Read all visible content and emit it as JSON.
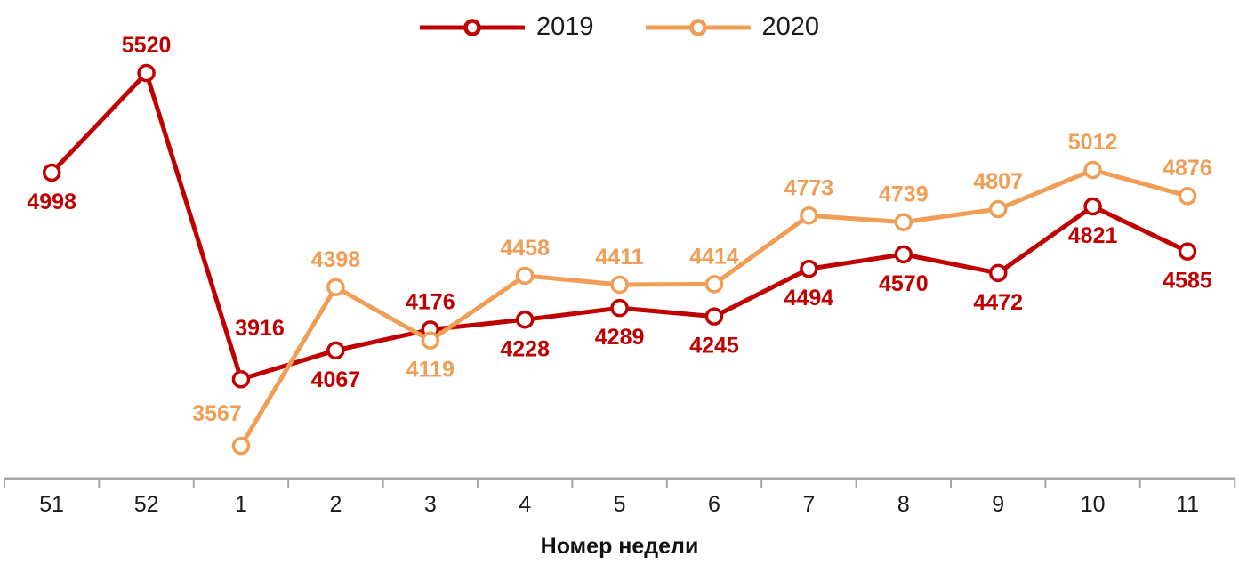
{
  "chart_data": {
    "type": "line",
    "title": "",
    "xlabel": "Номер недели",
    "ylabel": "",
    "categories": [
      "51",
      "52",
      "1",
      "2",
      "3",
      "4",
      "5",
      "6",
      "7",
      "8",
      "9",
      "10",
      "11"
    ],
    "series": [
      {
        "name": "2019",
        "color": "#C00000",
        "values": [
          4998,
          5520,
          3916,
          4067,
          4176,
          4228,
          4289,
          4245,
          4494,
          4570,
          4472,
          4821,
          4585
        ],
        "label_positions": [
          "below",
          "above",
          "above-right",
          "below",
          "above",
          "below",
          "below",
          "below",
          "below",
          "below",
          "below",
          "below",
          "below"
        ]
      },
      {
        "name": "2020",
        "color": "#F09D55",
        "values": [
          null,
          null,
          3567,
          4398,
          4119,
          4458,
          4411,
          4414,
          4773,
          4739,
          4807,
          5012,
          4876
        ],
        "label_positions": [
          null,
          null,
          "above-left",
          "above",
          "below",
          "above",
          "above",
          "above",
          "above",
          "above",
          "above",
          "above",
          "above"
        ]
      }
    ],
    "marker": "open-circle",
    "grid": false,
    "y_axis_visible": false,
    "legend_position": "top-center",
    "axis_color": "#A6A6A6",
    "text_color": "#1a1a1a",
    "background": "#FFFFFF",
    "value_range_visible": [
      3567,
      5520
    ]
  }
}
